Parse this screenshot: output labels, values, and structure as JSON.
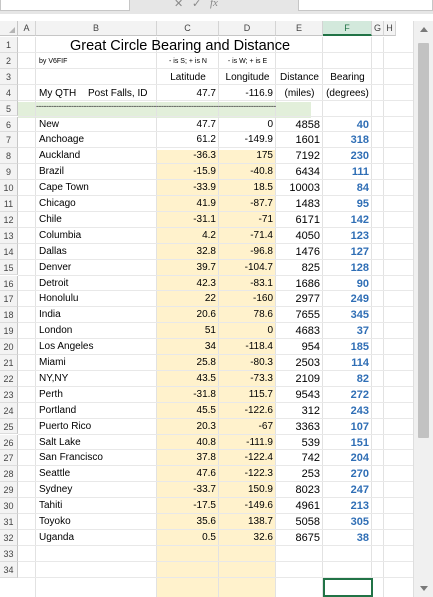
{
  "columns": [
    "A",
    "B",
    "C",
    "D",
    "E",
    "F",
    "G",
    "H"
  ],
  "selected_column": "F",
  "sheet": {
    "title": "Great Circle Bearing and Distance",
    "author": "by V6FIF",
    "lat_hint": "- is S; + is N",
    "lon_hint": "- is W; + is E",
    "header_latitude": "Latitude",
    "header_longitude": "Longitude",
    "header_distance": "Distance",
    "header_bearing": "Bearing",
    "qth_label": "My QTH",
    "qth_location": "Post Falls, ID",
    "qth_lat": "47.7",
    "qth_lon": "-116.9",
    "units_distance": "(miles)",
    "units_bearing": "(degrees)",
    "separator": "------------------------------------------------------------------------------------------------"
  },
  "rows": [
    {
      "city": "New",
      "lat": "47.7",
      "lon": "0",
      "dist": "4858",
      "bearing": "40"
    },
    {
      "city": "Anchoage",
      "lat": "61.2",
      "lon": "-149.9",
      "dist": "1601",
      "bearing": "318"
    },
    {
      "city": "Auckland",
      "lat": "-36.3",
      "lon": "175",
      "dist": "7192",
      "bearing": "230"
    },
    {
      "city": "Brazil",
      "lat": "-15.9",
      "lon": "-40.8",
      "dist": "6434",
      "bearing": "111"
    },
    {
      "city": "Cape Town",
      "lat": "-33.9",
      "lon": "18.5",
      "dist": "10003",
      "bearing": "84"
    },
    {
      "city": "Chicago",
      "lat": "41.9",
      "lon": "-87.7",
      "dist": "1483",
      "bearing": "95"
    },
    {
      "city": "Chile",
      "lat": "-31.1",
      "lon": "-71",
      "dist": "6171",
      "bearing": "142"
    },
    {
      "city": "Columbia",
      "lat": "4.2",
      "lon": "-71.4",
      "dist": "4050",
      "bearing": "123"
    },
    {
      "city": "Dallas",
      "lat": "32.8",
      "lon": "-96.8",
      "dist": "1476",
      "bearing": "127"
    },
    {
      "city": "Denver",
      "lat": "39.7",
      "lon": "-104.7",
      "dist": "825",
      "bearing": "128"
    },
    {
      "city": "Detroit",
      "lat": "42.3",
      "lon": "-83.1",
      "dist": "1686",
      "bearing": "90"
    },
    {
      "city": "Honolulu",
      "lat": "22",
      "lon": "-160",
      "dist": "2977",
      "bearing": "249"
    },
    {
      "city": "India",
      "lat": "20.6",
      "lon": "78.6",
      "dist": "7655",
      "bearing": "345"
    },
    {
      "city": "London",
      "lat": "51",
      "lon": "0",
      "dist": "4683",
      "bearing": "37"
    },
    {
      "city": "Los Angeles",
      "lat": "34",
      "lon": "-118.4",
      "dist": "954",
      "bearing": "185"
    },
    {
      "city": "Miami",
      "lat": "25.8",
      "lon": "-80.3",
      "dist": "2503",
      "bearing": "114"
    },
    {
      "city": "NY,NY",
      "lat": "43.5",
      "lon": "-73.3",
      "dist": "2109",
      "bearing": "82"
    },
    {
      "city": "Perth",
      "lat": "-31.8",
      "lon": "115.7",
      "dist": "9543",
      "bearing": "272"
    },
    {
      "city": "Portland",
      "lat": "45.5",
      "lon": "-122.6",
      "dist": "312",
      "bearing": "243"
    },
    {
      "city": "Puerto Rico",
      "lat": "20.3",
      "lon": "-67",
      "dist": "3363",
      "bearing": "107"
    },
    {
      "city": "Salt Lake",
      "lat": "40.8",
      "lon": "-111.9",
      "dist": "539",
      "bearing": "151"
    },
    {
      "city": "San Francisco",
      "lat": "37.8",
      "lon": "-122.4",
      "dist": "742",
      "bearing": "204"
    },
    {
      "city": "Seattle",
      "lat": "47.6",
      "lon": "-122.3",
      "dist": "253",
      "bearing": "270"
    },
    {
      "city": "Sydney",
      "lat": "-33.7",
      "lon": "150.9",
      "dist": "8023",
      "bearing": "247"
    },
    {
      "city": "Tahiti",
      "lat": "-17.5",
      "lon": "-149.6",
      "dist": "4961",
      "bearing": "213"
    },
    {
      "city": "Toyoko",
      "lat": "35.6",
      "lon": "138.7",
      "dist": "5058",
      "bearing": "305"
    },
    {
      "city": "Uganda",
      "lat": "0.5",
      "lon": "32.6",
      "dist": "8675",
      "bearing": "38"
    }
  ],
  "row_numbers": [
    "1",
    "2",
    "3",
    "4",
    "5",
    "6",
    "7",
    "8",
    "9",
    "10",
    "11",
    "12",
    "13",
    "14",
    "15",
    "16",
    "17",
    "18",
    "19",
    "20",
    "21",
    "22",
    "23",
    "24",
    "25",
    "26",
    "27",
    "28",
    "29",
    "30",
    "31",
    "32",
    "33",
    "34"
  ],
  "icons": {
    "fx": "fx-icon",
    "select_all": "select-all-icon"
  },
  "colors": {
    "latlon_fill": "#fff2cc",
    "qth_fill": "#e2efda",
    "bearing_text": "#2f6eb5",
    "selection": "#217346"
  }
}
